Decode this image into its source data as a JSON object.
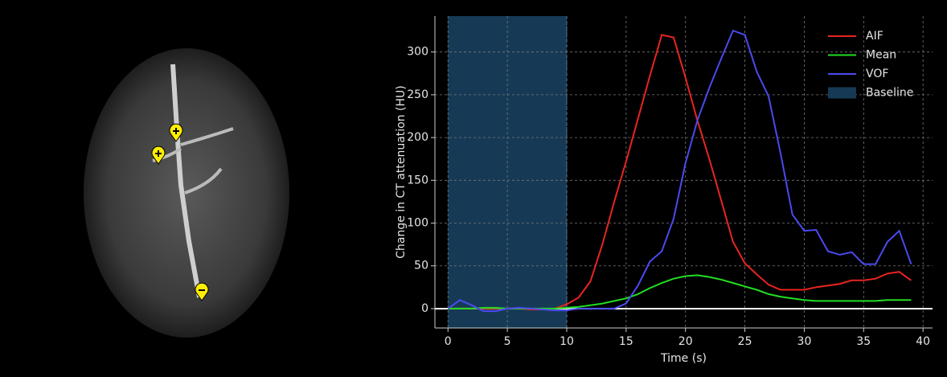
{
  "chart_data": {
    "type": "line",
    "x_label": "Time (s)",
    "y_label": "Change in CT attenuation (HU)",
    "x": [
      0,
      1,
      2,
      3,
      4,
      5,
      6,
      7,
      8,
      9,
      10,
      11,
      12,
      13,
      14,
      15,
      16,
      17,
      18,
      19,
      20,
      21,
      22,
      23,
      24,
      25,
      26,
      27,
      28,
      29,
      30,
      31,
      32,
      33,
      34,
      35,
      36,
      37,
      38,
      39
    ],
    "series": [
      {
        "name": "AIF",
        "color": "#e8251f",
        "values": [
          0,
          0,
          0,
          0,
          0,
          0,
          0,
          -1,
          -1,
          0,
          5,
          13,
          32,
          75,
          125,
          172,
          222,
          272,
          320,
          317,
          270,
          220,
          175,
          127,
          78,
          53,
          40,
          28,
          22,
          22,
          22,
          25,
          27,
          29,
          33,
          33,
          35,
          41,
          43,
          33
        ]
      },
      {
        "name": "Mean",
        "color": "#22dd22",
        "values": [
          0,
          0,
          0,
          1,
          1,
          0,
          0,
          0,
          0,
          0,
          1,
          2,
          4,
          6,
          9,
          12,
          17,
          24,
          30,
          35,
          38,
          39,
          37,
          34,
          30,
          26,
          22,
          17,
          14,
          12,
          10,
          9,
          9,
          9,
          9,
          9,
          9,
          10,
          10,
          10
        ]
      },
      {
        "name": "VOF",
        "color": "#4a4af0",
        "values": [
          0,
          10,
          4,
          -3,
          -3,
          0,
          1,
          0,
          -1,
          -2,
          -2,
          0,
          0,
          0,
          0,
          6,
          27,
          55,
          67,
          105,
          170,
          220,
          258,
          292,
          325,
          320,
          277,
          248,
          182,
          110,
          91,
          92,
          67,
          63,
          66,
          52,
          52,
          78,
          91,
          52
        ]
      }
    ],
    "spans": [
      {
        "name": "Baseline",
        "color": "#163a55",
        "xrange": [
          0,
          10
        ]
      }
    ],
    "hlines": [
      {
        "value": 0,
        "color": "#ffffff"
      }
    ],
    "xlim": [
      -1.1,
      40.8
    ],
    "ylim": [
      -22.6,
      342
    ],
    "xticks": [
      0,
      5,
      10,
      15,
      20,
      25,
      30,
      35,
      40
    ],
    "yticks": [
      0,
      50,
      100,
      150,
      200,
      250,
      300
    ],
    "grid": true,
    "legend": "upper right"
  }
}
